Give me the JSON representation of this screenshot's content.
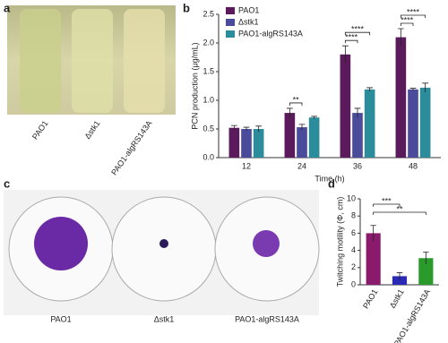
{
  "panels": [
    "a",
    "b",
    "c",
    "d"
  ],
  "photo_a": {
    "labels": [
      "PAO1",
      "Δstk1",
      "PAO1-algRS143A"
    ]
  },
  "photo_c": {
    "labels": [
      "PAO1",
      "Δstk1",
      "PAO1-algRS143A"
    ]
  },
  "chart_data": [
    {
      "type": "bar",
      "x_label": "Time (h)",
      "y_label": "PCN production (μg/mL)",
      "categories": [
        "12",
        "24",
        "36",
        "48"
      ],
      "series": [
        {
          "name": "PAO1",
          "color": "#5b1a5c",
          "values": [
            0.52,
            0.78,
            1.8,
            2.1
          ],
          "errors": [
            0.04,
            0.08,
            0.15,
            0.15
          ]
        },
        {
          "name": "Δstk1",
          "color": "#4b4b9c",
          "values": [
            0.5,
            0.53,
            0.78,
            1.19
          ],
          "errors": [
            0.03,
            0.05,
            0.08,
            0.02
          ]
        },
        {
          "name": "PAO1-algRS143A",
          "color": "#2b8c9c",
          "values": [
            0.5,
            0.7,
            1.19,
            1.22
          ],
          "errors": [
            0.05,
            0.02,
            0.03,
            0.08
          ]
        }
      ],
      "ylim": [
        0,
        2.5
      ],
      "yticks": [
        {
          "value": 0,
          "label": "0.0"
        },
        0.5,
        {
          "value": 1,
          "label": "1.0"
        },
        1.5,
        {
          "value": 2,
          "label": "2.0"
        },
        2.5
      ],
      "legend": "upper left",
      "significance": [
        {
          "category": 1,
          "from": 0,
          "to": 1,
          "label": "**"
        },
        {
          "category": 2,
          "from": 0,
          "to": 1,
          "label": "****"
        },
        {
          "category": 2,
          "from": 0,
          "to": 2,
          "label": "****"
        },
        {
          "category": 3,
          "from": 0,
          "to": 1,
          "label": "****"
        },
        {
          "category": 3,
          "from": 0,
          "to": 2,
          "label": "****"
        }
      ]
    },
    {
      "type": "bar",
      "y_label": "Twitching motility (Φ, cm)",
      "categories": [
        "PAO1",
        "Δstk1",
        "PAO1-algRS143A"
      ],
      "values": [
        6.0,
        1.0,
        3.1
      ],
      "errors": [
        0.9,
        0.4,
        0.7
      ],
      "colors": [
        "#8a1a6c",
        "#2a2ab4",
        "#2a9a2a"
      ],
      "ylim": [
        0,
        10
      ],
      "yticks": [
        0,
        2,
        4,
        6,
        8,
        10
      ],
      "significance": [
        {
          "from": 0,
          "to": 1,
          "label": "***"
        },
        {
          "from": 0,
          "to": 2,
          "label": "**"
        }
      ]
    }
  ]
}
